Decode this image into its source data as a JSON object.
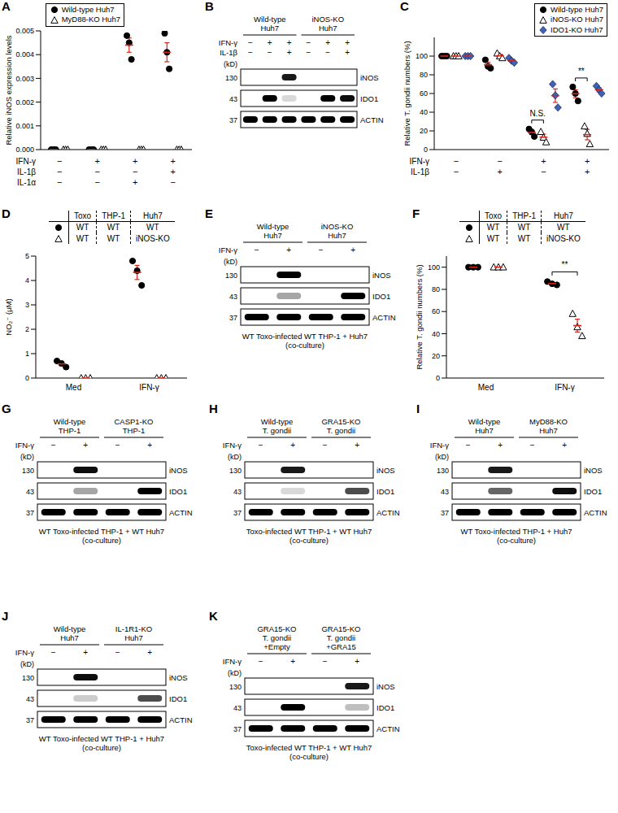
{
  "chart_data": [
    {
      "panel": "A",
      "type": "scatter",
      "y_label": "Relative iNOS expression levels",
      "ylim": [
        0,
        0.005
      ],
      "yticks": [
        {
          "value": 0,
          "label": "0.000"
        },
        {
          "value": 0.001,
          "label": "0.001"
        },
        {
          "value": 0.002,
          "label": "0.002"
        },
        {
          "value": 0.003,
          "label": "0.003"
        },
        {
          "value": 0.004,
          "label": "0.004"
        },
        {
          "value": 0.005,
          "label": "0.005"
        }
      ],
      "legend": "upper left",
      "conditions": [
        {
          "label": "IFN-γ",
          "values": [
            "−",
            "+",
            "+",
            "+"
          ]
        },
        {
          "label": "IL-1β",
          "values": [
            "−",
            "−",
            "−",
            "+"
          ]
        },
        {
          "label": "IL-1α",
          "values": [
            "−",
            "−",
            "+",
            "−"
          ]
        }
      ],
      "series": [
        {
          "name": "Wild-type Huh7",
          "marker": "circle",
          "color": "#000000",
          "values": [
            [
              0,
              0,
              0
            ],
            [
              0,
              0,
              0
            ],
            [
              0.0048,
              0.0045,
              0.0038
            ],
            [
              0.0049,
              0.0041,
              0.0034
            ]
          ],
          "mean": [
            0,
            0,
            0.0044,
            0.0041
          ],
          "error": [
            0,
            0,
            0.0003,
            0.0004
          ]
        },
        {
          "name": "MyD88-KO Huh7",
          "marker": "open_triangle",
          "color": "#000000",
          "values": [
            [
              0,
              0,
              0
            ],
            [
              0,
              0,
              0
            ],
            [
              0,
              0,
              0
            ],
            [
              0,
              0,
              0
            ]
          ],
          "mean": [
            0,
            0,
            0,
            0
          ],
          "error": [
            0,
            0,
            0,
            0
          ]
        }
      ]
    },
    {
      "panel": "C",
      "type": "scatter",
      "y_label": "Relative T. gondii numbers (%)",
      "ylim": [
        0,
        120
      ],
      "yticks": [
        0,
        20,
        40,
        60,
        80,
        100
      ],
      "legend": "upper right",
      "conditions": [
        {
          "label": "IFN-γ",
          "values": [
            "−",
            "−",
            "+",
            "+"
          ]
        },
        {
          "label": "IL-1β",
          "values": [
            "−",
            "+",
            "−",
            "+"
          ]
        }
      ],
      "series": [
        {
          "name": "Wild-type Huh7",
          "marker": "circle",
          "color": "#000000",
          "values": [
            [
              100,
              100,
              100
            ],
            [
              96,
              89,
              87
            ],
            [
              22,
              19,
              14
            ],
            [
              67,
              60,
              52
            ]
          ],
          "mean": [
            100,
            90.7,
            18.3,
            59.7
          ],
          "error": [
            0,
            2.7,
            2.3,
            4.3
          ]
        },
        {
          "name": "iNOS-KO Huh7",
          "marker": "open_triangle",
          "color": "#000000",
          "values": [
            [
              100,
              100,
              100
            ],
            [
              103,
              100,
              98
            ],
            [
              19,
              13,
              8
            ],
            [
              25,
              17,
              6
            ]
          ],
          "mean": [
            100,
            100.3,
            13.3,
            16
          ],
          "error": [
            0,
            1.5,
            3.2,
            5.5
          ]
        },
        {
          "name": "IDO1-KO Huh7",
          "marker": "diamond",
          "color": "#3b63b8",
          "values": [
            [
              100,
              100,
              100
            ],
            [
              98,
              95,
              93
            ],
            [
              70,
              58,
              45
            ],
            [
              68,
              64,
              60
            ]
          ],
          "mean": [
            100,
            95.3,
            57.7,
            64
          ],
          "error": [
            0,
            1.5,
            7.2,
            2.3
          ]
        }
      ],
      "annotations": [
        {
          "text": "N.S.",
          "category_index": 2,
          "between": [
            0,
            1
          ]
        },
        {
          "text": "**",
          "category_index": 3,
          "between": [
            0,
            1
          ]
        }
      ]
    },
    {
      "panel": "D",
      "type": "scatter",
      "y_label": "NO₂⁻ (μM)",
      "ylim": [
        0,
        5
      ],
      "yticks": [
        0,
        1,
        2,
        3,
        4,
        5
      ],
      "categories": [
        "Med",
        "IFN-γ"
      ],
      "genotype_table": {
        "columns": [
          "Toxo",
          "THP-1",
          "Huh7"
        ],
        "rows": [
          [
            "WT",
            "WT",
            "WT"
          ],
          [
            "WT",
            "WT",
            "iNOS-KO"
          ]
        ]
      },
      "series": [
        {
          "marker": "circle",
          "color": "#000000",
          "values": [
            [
              0.7,
              0.6,
              0.45
            ],
            [
              4.8,
              4.4,
              3.8
            ]
          ],
          "mean": [
            0.58,
            4.33
          ],
          "error": [
            0.07,
            0.29
          ]
        },
        {
          "marker": "open_triangle",
          "color": "#000000",
          "values": [
            [
              0,
              0,
              0
            ],
            [
              0,
              0,
              0
            ]
          ],
          "mean": [
            0,
            0
          ],
          "error": [
            0,
            0
          ]
        }
      ]
    },
    {
      "panel": "F",
      "type": "scatter",
      "y_label": "Relative T. gondii numbers (%)",
      "ylim": [
        0,
        110
      ],
      "yticks": [
        0,
        20,
        40,
        60,
        80,
        100
      ],
      "categories": [
        "Med",
        "IFN-γ"
      ],
      "genotype_table": {
        "columns": [
          "Toxo",
          "THP-1",
          "Huh7"
        ],
        "rows": [
          [
            "WT",
            "WT",
            "WT"
          ],
          [
            "WT",
            "WT",
            "iNOS-KO"
          ]
        ]
      },
      "series": [
        {
          "marker": "circle",
          "color": "#000000",
          "values": [
            [
              100,
              100,
              100
            ],
            [
              87,
              85,
              84
            ]
          ],
          "mean": [
            100,
            85.3
          ],
          "error": [
            0,
            0.9
          ]
        },
        {
          "marker": "open_triangle",
          "color": "#000000",
          "values": [
            [
              100,
              100,
              100
            ],
            [
              58,
              46,
              38
            ]
          ],
          "mean": [
            100,
            47.3
          ],
          "error": [
            0,
            5.8
          ]
        }
      ],
      "annotations": [
        {
          "text": "**",
          "category_index": 1,
          "between": [
            0,
            1
          ]
        }
      ]
    }
  ],
  "blots": [
    {
      "panel": "B",
      "groups": [
        {
          "label": [
            "Wild-type",
            "Huh7"
          ]
        },
        {
          "label": [
            "iNOS-KO",
            "Huh7"
          ]
        }
      ],
      "conditions": [
        {
          "label": "IFN-γ",
          "values": [
            "−",
            "+",
            "+",
            "−",
            "+",
            "+"
          ]
        },
        {
          "label": "IL-1β",
          "values": [
            "−",
            "−",
            "+",
            "−",
            "−",
            "+"
          ]
        }
      ],
      "kd_label": "(kD)",
      "bands": [
        {
          "protein": "iNOS",
          "kd": 130,
          "intensity": [
            0,
            0,
            0.9,
            0,
            0,
            0
          ]
        },
        {
          "protein": "IDO1",
          "kd": 43,
          "intensity": [
            0,
            1,
            0.15,
            0,
            1,
            0.95
          ]
        },
        {
          "protein": "ACTIN",
          "kd": 37,
          "intensity": [
            1,
            1,
            1,
            1,
            1,
            1
          ]
        }
      ]
    },
    {
      "panel": "E",
      "groups": [
        {
          "label": [
            "Wild-type",
            "Huh7"
          ]
        },
        {
          "label": [
            "iNOS-KO",
            "Huh7"
          ]
        }
      ],
      "conditions": [
        {
          "label": "IFN-γ",
          "values": [
            "−",
            "+",
            "−",
            "+"
          ]
        }
      ],
      "kd_label": "(kD)",
      "bands": [
        {
          "protein": "iNOS",
          "kd": 130,
          "intensity": [
            0,
            1,
            0,
            0
          ]
        },
        {
          "protein": "IDO1",
          "kd": 43,
          "intensity": [
            0,
            0.35,
            0,
            1
          ]
        },
        {
          "protein": "ACTIN",
          "kd": 37,
          "intensity": [
            1,
            1,
            1,
            1
          ]
        }
      ],
      "caption": [
        "WT Toxo-infected WT THP-1 + Huh7",
        "(co-culture)"
      ]
    },
    {
      "panel": "G",
      "groups": [
        {
          "label": [
            "Wild-type",
            "THP-1"
          ]
        },
        {
          "label": [
            "CASP1-KO",
            "THP-1"
          ]
        }
      ],
      "conditions": [
        {
          "label": "IFN-γ",
          "values": [
            "−",
            "+",
            "−",
            "+"
          ]
        }
      ],
      "kd_label": "(kD)",
      "bands": [
        {
          "protein": "iNOS",
          "kd": 130,
          "intensity": [
            0,
            0.95,
            0,
            0
          ]
        },
        {
          "protein": "IDO1",
          "kd": 43,
          "intensity": [
            0,
            0.35,
            0,
            1
          ]
        },
        {
          "protein": "ACTIN",
          "kd": 37,
          "intensity": [
            1,
            1,
            1,
            1
          ]
        }
      ],
      "caption": [
        "WT Toxo-infected THP-1 + WT Huh7",
        "(co-culture)"
      ]
    },
    {
      "panel": "H",
      "groups": [
        {
          "label": [
            "Wild-type",
            "T. gondii"
          ]
        },
        {
          "label": [
            "GRA15-KO",
            "T. gondii"
          ]
        }
      ],
      "conditions": [
        {
          "label": "IFN-γ",
          "values": [
            "−",
            "+",
            "−",
            "+"
          ]
        }
      ],
      "kd_label": "(kD)",
      "bands": [
        {
          "protein": "iNOS",
          "kd": 130,
          "intensity": [
            0,
            0.9,
            0,
            0
          ]
        },
        {
          "protein": "IDO1",
          "kd": 43,
          "intensity": [
            0,
            0.15,
            0,
            0.7
          ]
        },
        {
          "protein": "ACTIN",
          "kd": 37,
          "intensity": [
            1,
            1,
            1,
            1
          ]
        }
      ],
      "caption": [
        "Toxo-infected WT THP-1 + WT Huh7",
        "(co-culture)"
      ]
    },
    {
      "panel": "I",
      "groups": [
        {
          "label": [
            "Wild-type",
            "Huh7"
          ]
        },
        {
          "label": [
            "MyD88-KO",
            "Huh7"
          ]
        }
      ],
      "conditions": [
        {
          "label": "IFN-γ",
          "values": [
            "−",
            "+",
            "−",
            "+"
          ]
        }
      ],
      "kd_label": "(kD)",
      "bands": [
        {
          "protein": "iNOS",
          "kd": 130,
          "intensity": [
            0,
            0.9,
            0,
            0
          ]
        },
        {
          "protein": "IDO1",
          "kd": 43,
          "intensity": [
            0,
            0.6,
            0,
            0.95
          ]
        },
        {
          "protein": "ACTIN",
          "kd": 37,
          "intensity": [
            1,
            1,
            1,
            1
          ]
        }
      ],
      "caption": [
        "WT Toxo-infected THP-1 + Huh7",
        "(co-culture)"
      ]
    },
    {
      "panel": "J",
      "groups": [
        {
          "label": [
            "Wild-type",
            "Huh7"
          ]
        },
        {
          "label": [
            "IL-1R1-KO",
            "Huh7"
          ]
        }
      ],
      "conditions": [
        {
          "label": "IFN-γ",
          "values": [
            "−",
            "+",
            "−",
            "+"
          ]
        }
      ],
      "kd_label": "(kD)",
      "bands": [
        {
          "protein": "iNOS",
          "kd": 130,
          "intensity": [
            0,
            0.95,
            0,
            0
          ]
        },
        {
          "protein": "IDO1",
          "kd": 43,
          "intensity": [
            0,
            0.2,
            0,
            0.7
          ]
        },
        {
          "protein": "ACTIN",
          "kd": 37,
          "intensity": [
            1,
            1,
            1,
            1
          ]
        }
      ],
      "caption": [
        "WT Toxo-infected WT THP-1 + Huh7",
        "(co-culture)"
      ]
    },
    {
      "panel": "K",
      "groups": [
        {
          "label": [
            "GRA15-KO",
            "T. gondii",
            "+Empty"
          ]
        },
        {
          "label": [
            "GRA15-KO",
            "T. gondii",
            "+GRA15"
          ]
        }
      ],
      "conditions": [
        {
          "label": "IFN-γ",
          "values": [
            "−",
            "+",
            "−",
            "+"
          ]
        }
      ],
      "kd_label": "(kD)",
      "bands": [
        {
          "protein": "iNOS",
          "kd": 130,
          "intensity": [
            0,
            0,
            0,
            0.9
          ]
        },
        {
          "protein": "IDO1",
          "kd": 43,
          "intensity": [
            0,
            1,
            0,
            0.25
          ]
        },
        {
          "protein": "ACTIN",
          "kd": 37,
          "intensity": [
            1,
            1,
            1,
            1
          ]
        }
      ],
      "caption": [
        "Toxo-infected WT THP-1 + WT Huh7",
        "(co-culture)"
      ]
    }
  ]
}
